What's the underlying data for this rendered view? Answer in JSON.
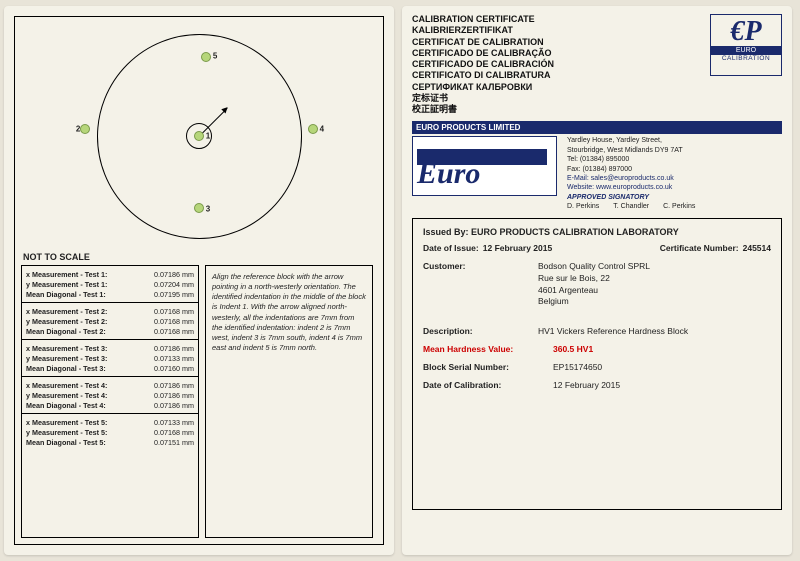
{
  "left": {
    "notToScale": "NOT TO SCALE",
    "points": [
      {
        "id": "1",
        "x": 50,
        "y": 50
      },
      {
        "id": "2",
        "x": 18,
        "y": 47
      },
      {
        "id": "3",
        "x": 50,
        "y": 82
      },
      {
        "id": "4",
        "x": 82,
        "y": 47
      },
      {
        "id": "5",
        "x": 52,
        "y": 15
      }
    ],
    "tests": [
      {
        "n": "1",
        "x": "0.07186",
        "y": "0.07204",
        "m": "0.07195"
      },
      {
        "n": "2",
        "x": "0.07168",
        "y": "0.07168",
        "m": "0.07168"
      },
      {
        "n": "3",
        "x": "0.07186",
        "y": "0.07133",
        "m": "0.07160"
      },
      {
        "n": "4",
        "x": "0.07186",
        "y": "0.07186",
        "m": "0.07186"
      },
      {
        "n": "5",
        "x": "0.07133",
        "y": "0.07168",
        "m": "0.07151"
      }
    ],
    "unit": "mm",
    "instructions": "Align the reference block with the arrow pointing in a north-westerly orientation. The identified indentation in the middle of the block is Indent 1. With the arrow aligned north-westerly, all the indentations are 7mm from the identified indentation: indent 2 is 7mm west, indent 3 is 7mm south, indent 4 is 7mm east and indent 5 is 7mm north."
  },
  "right": {
    "titles": [
      "CALIBRATION CERTIFICATE",
      "KALIBRIERZERTIFIKAT",
      "CERTIFICAT DE CALIBRATION",
      "CERTIFICADO DE CALIBRAÇÃO",
      "CERTIFICADO DE CALIBRACIÓN",
      "CERTIFICATO DI CALIBRATURA",
      "СЕРТИФИКАТ КАЛБРОВКИ",
      "定标证书",
      "校正証明書"
    ],
    "logo": {
      "mono": "€P",
      "bar": "EURO",
      "sub": "CALIBRATION"
    },
    "band": "EURO PRODUCTS LIMITED",
    "euroWord": "Euro",
    "address": {
      "l1": "Yardley House, Yardley Street,",
      "l2": "Stourbridge, West Midlands DY9 7AT",
      "tel": "Tel:   (01384) 895000",
      "fax": "Fax:  (01384) 897000",
      "email": "E-Mail: sales@europroducts.co.uk",
      "web": "Website: www.europroducts.co.uk",
      "appr": "APPROVED SIGNATORY",
      "s1": "D. Perkins",
      "s2": "T. Chandler",
      "s3": "C. Perkins"
    },
    "issuedByLabel": "Issued By:",
    "issuedBy": "EURO PRODUCTS CALIBRATION LABORATORY",
    "dateIssueLabel": "Date of Issue:",
    "dateIssue": "12 February 2015",
    "certNoLabel": "Certificate Number:",
    "certNo": "245514",
    "customerLabel": "Customer:",
    "customer": [
      "Bodson Quality Control SPRL",
      "Rue sur le Bois, 22",
      "4601 Argenteau",
      "Belgium"
    ],
    "descLabel": "Description:",
    "desc": "HV1  Vickers Reference Hardness Block",
    "meanLabel": "Mean Hardness Value:",
    "mean": "360.5 HV1",
    "serialLabel": "Block Serial Number:",
    "serial": "EP15174650",
    "calDateLabel": "Date of Calibration:",
    "calDate": "12 February 2015"
  }
}
